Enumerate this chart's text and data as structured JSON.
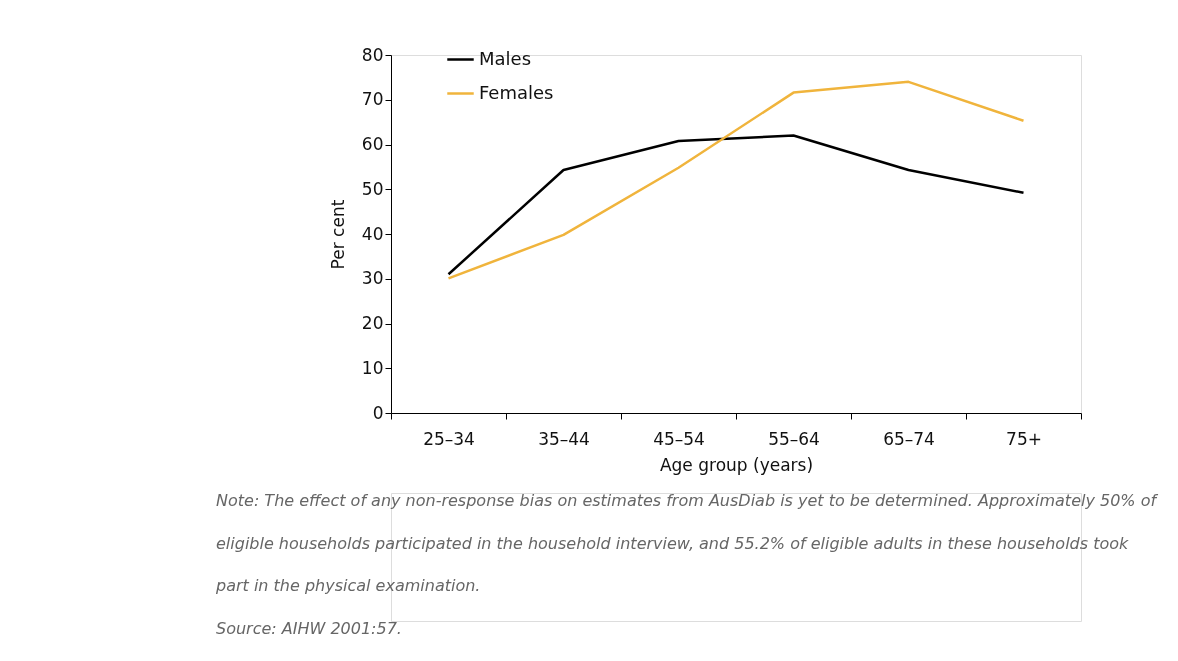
{
  "chart_data": {
    "type": "line",
    "xlabel": "Age group (years)",
    "ylabel": "Per cent",
    "categories": [
      "25–34",
      "35–44",
      "45–54",
      "55–64",
      "65–74",
      "75+"
    ],
    "series": [
      {
        "name": "Males",
        "color": "#000000",
        "values": [
          31,
          54.3,
          60.8,
          62,
          54.3,
          49.2
        ]
      },
      {
        "name": "Females",
        "color": "#f0b43c",
        "values": [
          30.1,
          39.8,
          54.8,
          71.6,
          74,
          65.3
        ]
      }
    ],
    "ylim": [
      0,
      80
    ],
    "yticks": [
      0,
      10,
      20,
      30,
      40,
      50,
      60,
      70,
      80
    ],
    "grid": false,
    "legend": "top left",
    "marker": "none",
    "line_style": "solid",
    "annotations": [
      "Note: The effect of any non-response bias on estimates from AusDiab is yet to be determined. Approximately 50% of eligible households participated in the household interview, and 55.2% of eligible adults in these households took part in the physical examination.",
      "Source: AIHW 2001:57."
    ]
  }
}
